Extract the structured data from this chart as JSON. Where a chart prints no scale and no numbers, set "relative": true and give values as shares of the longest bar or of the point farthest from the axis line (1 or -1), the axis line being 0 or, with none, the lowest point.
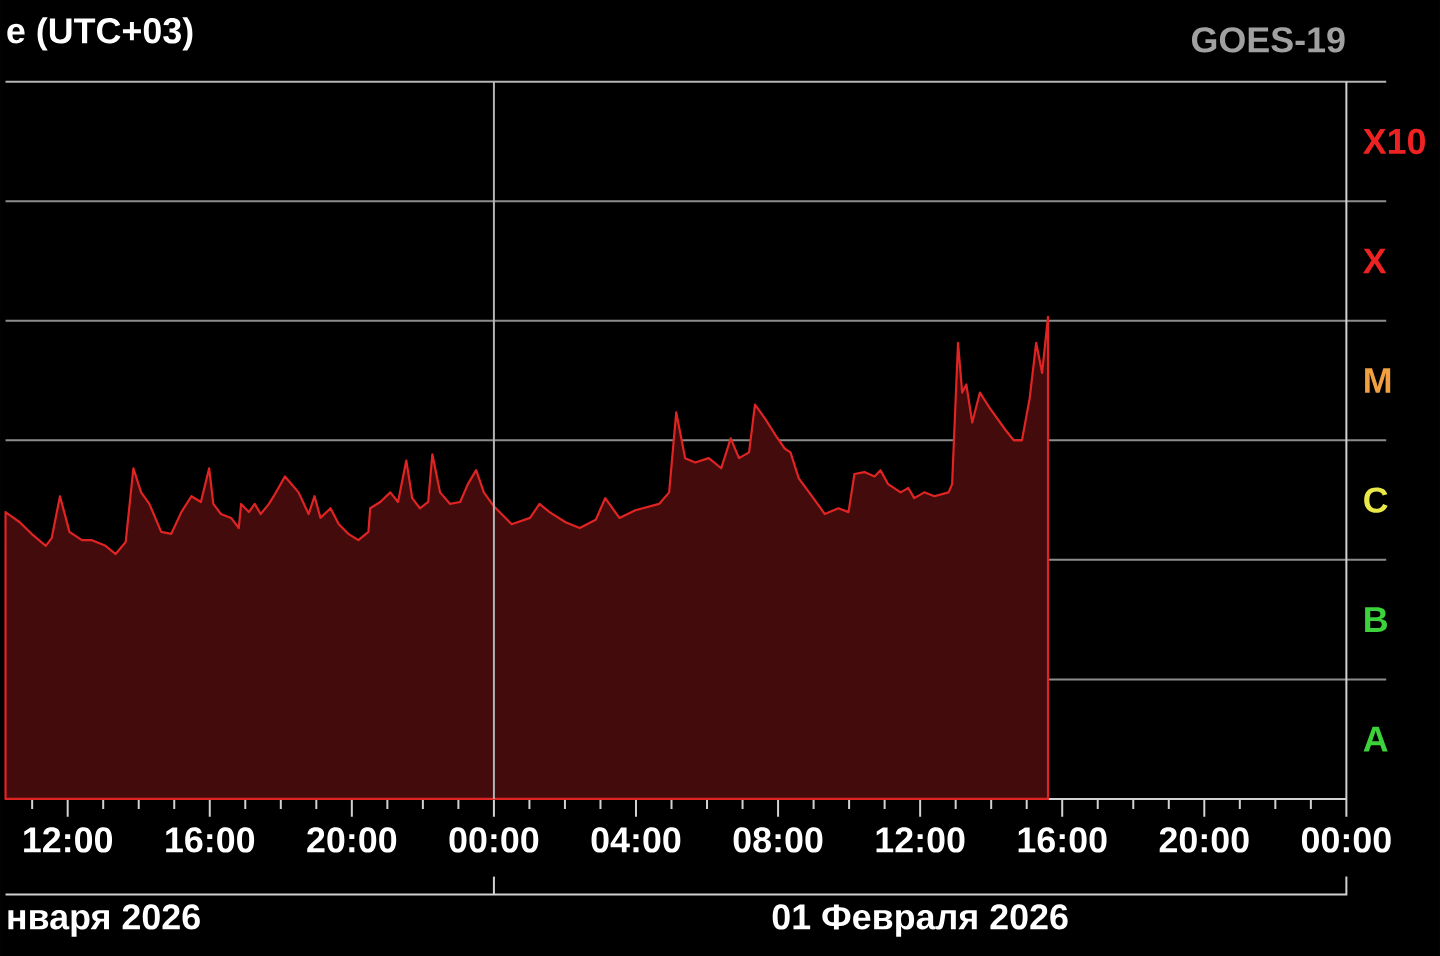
{
  "chart_data": {
    "type": "area",
    "title": "e (UTC+03)",
    "subtitle": "GOES-19",
    "annotations": [
      "нваря 2026",
      "01 Февраля 2026",
      "A",
      "B",
      "C",
      "M",
      "X",
      "X10"
    ],
    "relative": true,
    "x": [
      "2026-01-31T10:15",
      "2026-01-31T10:39",
      "2026-01-31T10:59",
      "2026-01-31T11:23",
      "2026-01-31T11:33",
      "2026-01-31T11:47",
      "2026-01-31T12:03",
      "2026-01-31T12:24",
      "2026-01-31T12:40",
      "2026-01-31T13:04",
      "2026-01-31T13:21",
      "2026-01-31T13:38",
      "2026-01-31T13:51",
      "2026-01-31T14:04",
      "2026-01-31T14:18",
      "2026-01-31T14:38",
      "2026-01-31T14:55",
      "2026-01-31T15:12",
      "2026-01-31T15:29",
      "2026-01-31T15:45",
      "2026-01-31T15:59",
      "2026-01-31T16:06",
      "2026-01-31T16:19",
      "2026-01-31T16:36",
      "2026-01-31T16:49",
      "2026-01-31T16:53",
      "2026-01-31T17:06",
      "2026-01-31T17:16",
      "2026-01-31T17:26",
      "2026-01-31T17:40",
      "2026-01-31T17:50",
      "2026-01-31T18:07",
      "2026-01-31T18:30",
      "2026-01-31T18:47",
      "2026-01-31T18:57",
      "2026-01-31T19:07",
      "2026-01-31T19:24",
      "2026-01-31T19:38",
      "2026-01-31T19:54",
      "2026-01-31T20:11",
      "2026-01-31T20:28",
      "2026-01-31T20:31",
      "2026-01-31T20:48",
      "2026-01-31T21:05",
      "2026-01-31T21:18",
      "2026-01-31T21:32",
      "2026-01-31T21:42",
      "2026-01-31T21:55",
      "2026-01-31T22:09",
      "2026-01-31T22:16",
      "2026-01-31T22:29",
      "2026-01-31T22:46",
      "2026-01-31T23:03",
      "2026-01-31T23:16",
      "2026-01-31T23:30",
      "2026-01-31T23:43",
      "2026-02-01T00:00",
      "2026-02-01T00:30",
      "2026-02-01T01:01",
      "2026-02-01T01:17",
      "2026-02-01T01:34",
      "2026-02-01T02:01",
      "2026-02-01T02:25",
      "2026-02-01T02:52",
      "2026-02-01T03:08",
      "2026-02-01T03:32",
      "2026-02-01T03:59",
      "2026-02-01T04:39",
      "2026-02-01T04:56",
      "2026-02-01T05:08",
      "2026-02-01T05:23",
      "2026-02-01T05:40",
      "2026-02-01T06:03",
      "2026-02-01T06:24",
      "2026-02-01T06:40",
      "2026-02-01T06:54",
      "2026-02-01T07:11",
      "2026-02-01T07:21",
      "2026-02-01T07:38",
      "2026-02-01T07:55",
      "2026-02-01T08:11",
      "2026-02-01T08:21",
      "2026-02-01T08:35",
      "2026-02-01T08:55",
      "2026-02-01T09:19",
      "2026-02-01T09:42",
      "2026-02-01T09:59",
      "2026-02-01T10:09",
      "2026-02-01T10:26",
      "2026-02-01T10:43",
      "2026-02-01T10:53",
      "2026-02-01T11:06",
      "2026-02-01T11:27",
      "2026-02-01T11:40",
      "2026-02-01T11:50",
      "2026-02-01T12:07",
      "2026-02-01T12:24",
      "2026-02-01T12:48",
      "2026-02-01T12:54",
      "2026-02-01T13:04",
      "2026-02-01T13:11",
      "2026-02-01T13:18",
      "2026-02-01T13:28",
      "2026-02-01T13:41",
      "2026-02-01T13:58",
      "2026-02-01T14:22",
      "2026-02-01T14:38",
      "2026-02-01T14:52",
      "2026-02-01T15:05",
      "2026-02-01T15:16",
      "2026-02-01T15:26",
      "2026-02-01T15:36"
    ],
    "values": [
      0.595,
      0.574,
      0.55,
      0.525,
      0.541,
      0.628,
      0.554,
      0.537,
      0.537,
      0.525,
      0.508,
      0.533,
      0.686,
      0.636,
      0.612,
      0.554,
      0.55,
      0.595,
      0.628,
      0.616,
      0.686,
      0.612,
      0.591,
      0.583,
      0.562,
      0.612,
      0.595,
      0.612,
      0.591,
      0.612,
      0.632,
      0.669,
      0.636,
      0.591,
      0.628,
      0.583,
      0.603,
      0.57,
      0.55,
      0.537,
      0.554,
      0.603,
      0.616,
      0.636,
      0.616,
      0.702,
      0.624,
      0.603,
      0.616,
      0.715,
      0.636,
      0.612,
      0.616,
      0.653,
      0.682,
      0.636,
      0.607,
      0.57,
      0.583,
      0.612,
      0.595,
      0.574,
      0.562,
      0.579,
      0.624,
      0.583,
      0.599,
      0.612,
      0.636,
      0.802,
      0.707,
      0.698,
      0.707,
      0.686,
      0.748,
      0.707,
      0.719,
      0.818,
      0.789,
      0.756,
      0.727,
      0.719,
      0.665,
      0.632,
      0.591,
      0.603,
      0.595,
      0.674,
      0.678,
      0.669,
      0.682,
      0.653,
      0.636,
      0.645,
      0.624,
      0.636,
      0.628,
      0.636,
      0.653,
      0.946,
      0.843,
      0.86,
      0.781,
      0.843,
      0.81,
      0.769,
      0.744,
      0.744,
      0.831,
      0.946,
      0.884,
      1.0
    ],
    "color": "#e02424",
    "xlim": [
      "2026-01-31T10:15",
      "2026-02-02T00:00"
    ],
    "xticks": [
      {
        "value": "2026-01-31T11:00",
        "label": null
      },
      {
        "value": "2026-01-31T12:00",
        "label": "12:00"
      },
      {
        "value": "2026-01-31T13:00",
        "label": null
      },
      {
        "value": "2026-01-31T14:00",
        "label": null
      },
      {
        "value": "2026-01-31T15:00",
        "label": null
      },
      {
        "value": "2026-01-31T16:00",
        "label": "16:00"
      },
      {
        "value": "2026-01-31T17:00",
        "label": null
      },
      {
        "value": "2026-01-31T18:00",
        "label": null
      },
      {
        "value": "2026-01-31T19:00",
        "label": null
      },
      {
        "value": "2026-01-31T20:00",
        "label": "20:00"
      },
      {
        "value": "2026-01-31T21:00",
        "label": null
      },
      {
        "value": "2026-01-31T22:00",
        "label": null
      },
      {
        "value": "2026-01-31T23:00",
        "label": null
      },
      {
        "value": "2026-02-01T00:00",
        "label": "00:00"
      },
      {
        "value": "2026-02-01T01:00",
        "label": null
      },
      {
        "value": "2026-02-01T02:00",
        "label": null
      },
      {
        "value": "2026-02-01T03:00",
        "label": null
      },
      {
        "value": "2026-02-01T04:00",
        "label": "04:00"
      },
      {
        "value": "2026-02-01T05:00",
        "label": null
      },
      {
        "value": "2026-02-01T06:00",
        "label": null
      },
      {
        "value": "2026-02-01T07:00",
        "label": null
      },
      {
        "value": "2026-02-01T08:00",
        "label": "08:00"
      },
      {
        "value": "2026-02-01T09:00",
        "label": null
      },
      {
        "value": "2026-02-01T10:00",
        "label": null
      },
      {
        "value": "2026-02-01T11:00",
        "label": null
      },
      {
        "value": "2026-02-01T12:00",
        "label": "12:00"
      },
      {
        "value": "2026-02-01T13:00",
        "label": null
      },
      {
        "value": "2026-02-01T14:00",
        "label": null
      },
      {
        "value": "2026-02-01T15:00",
        "label": null
      },
      {
        "value": "2026-02-01T16:00",
        "label": "16:00"
      },
      {
        "value": "2026-02-01T17:00",
        "label": null
      },
      {
        "value": "2026-02-01T18:00",
        "label": null
      },
      {
        "value": "2026-02-01T19:00",
        "label": null
      },
      {
        "value": "2026-02-01T20:00",
        "label": "20:00"
      },
      {
        "value": "2026-02-01T21:00",
        "label": null
      },
      {
        "value": "2026-02-01T22:00",
        "label": null
      },
      {
        "value": "2026-02-01T23:00",
        "label": null
      },
      {
        "value": "2026-02-02T00:00",
        "label": "00:00"
      }
    ],
    "ref_lines": [
      {
        "axis": "x",
        "value": "2026-02-01T00:00",
        "color": "#b4b4b4"
      },
      {
        "axis": "y",
        "value": 0.248,
        "color": "#8c8c8c"
      },
      {
        "axis": "y",
        "value": 0.496,
        "color": "#8c8c8c"
      },
      {
        "axis": "y",
        "value": 0.744,
        "color": "#8c8c8c"
      },
      {
        "axis": "y",
        "value": 0.992,
        "color": "#8c8c8c"
      },
      {
        "axis": "y",
        "value": 1.24,
        "color": "#8c8c8c"
      },
      {
        "axis": "y",
        "value": 1.488,
        "color": "#b4b4b4"
      }
    ]
  }
}
